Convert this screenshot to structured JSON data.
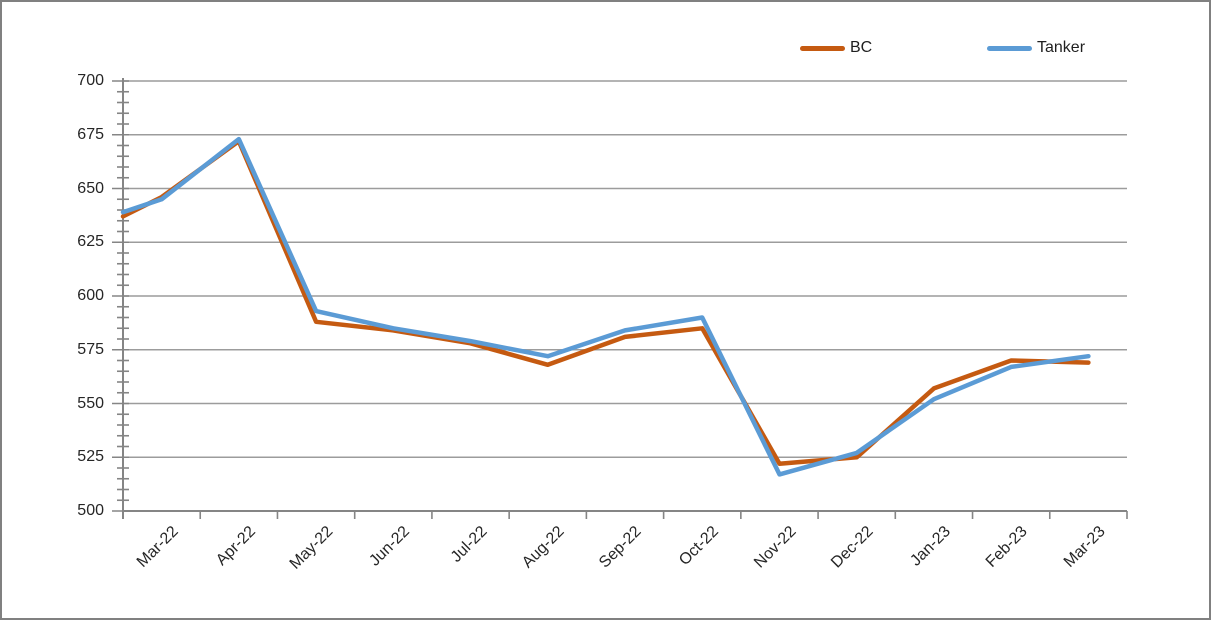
{
  "chart_data": {
    "type": "line",
    "title": "",
    "xlabel": "",
    "ylabel": "",
    "categories": [
      "Mar-22",
      "Apr-22",
      "May-22",
      "Jun-22",
      "Jul-22",
      "Aug-22",
      "Sep-22",
      "Oct-22",
      "Nov-22",
      "Dec-22",
      "Jan-23",
      "Feb-23",
      "Mar-23"
    ],
    "series": [
      {
        "name": "BC",
        "color": "#C55A11",
        "axis_lead_in": 637,
        "values": [
          646,
          672,
          588,
          584,
          578,
          568,
          581,
          585,
          522,
          525,
          557,
          570,
          569
        ]
      },
      {
        "name": "Tanker",
        "color": "#5B9BD5",
        "axis_lead_in": 639,
        "values": [
          645,
          673,
          593,
          585,
          579,
          572,
          584,
          590,
          517,
          527,
          552,
          567,
          572
        ]
      }
    ],
    "ylim": [
      500,
      700
    ],
    "ytick_step": 25,
    "y_minor_tick_step": 5,
    "ytick_labels": [
      "500",
      "525",
      "550",
      "575",
      "600",
      "625",
      "650",
      "675",
      "700"
    ],
    "grid": "horizontal-major",
    "legend_position": "top-right"
  },
  "legend": {
    "items": [
      {
        "label": "BC",
        "color": "#C55A11"
      },
      {
        "label": "Tanker",
        "color": "#5B9BD5"
      }
    ]
  },
  "colors": {
    "background": "#FFFFFF",
    "frame_border": "#808080",
    "axis": "#858585",
    "gridline": "#9C9C9C",
    "tick": "#858585",
    "label_text": "#262626",
    "bc_line": "#C55A11",
    "tanker_line": "#5B9BD5"
  }
}
